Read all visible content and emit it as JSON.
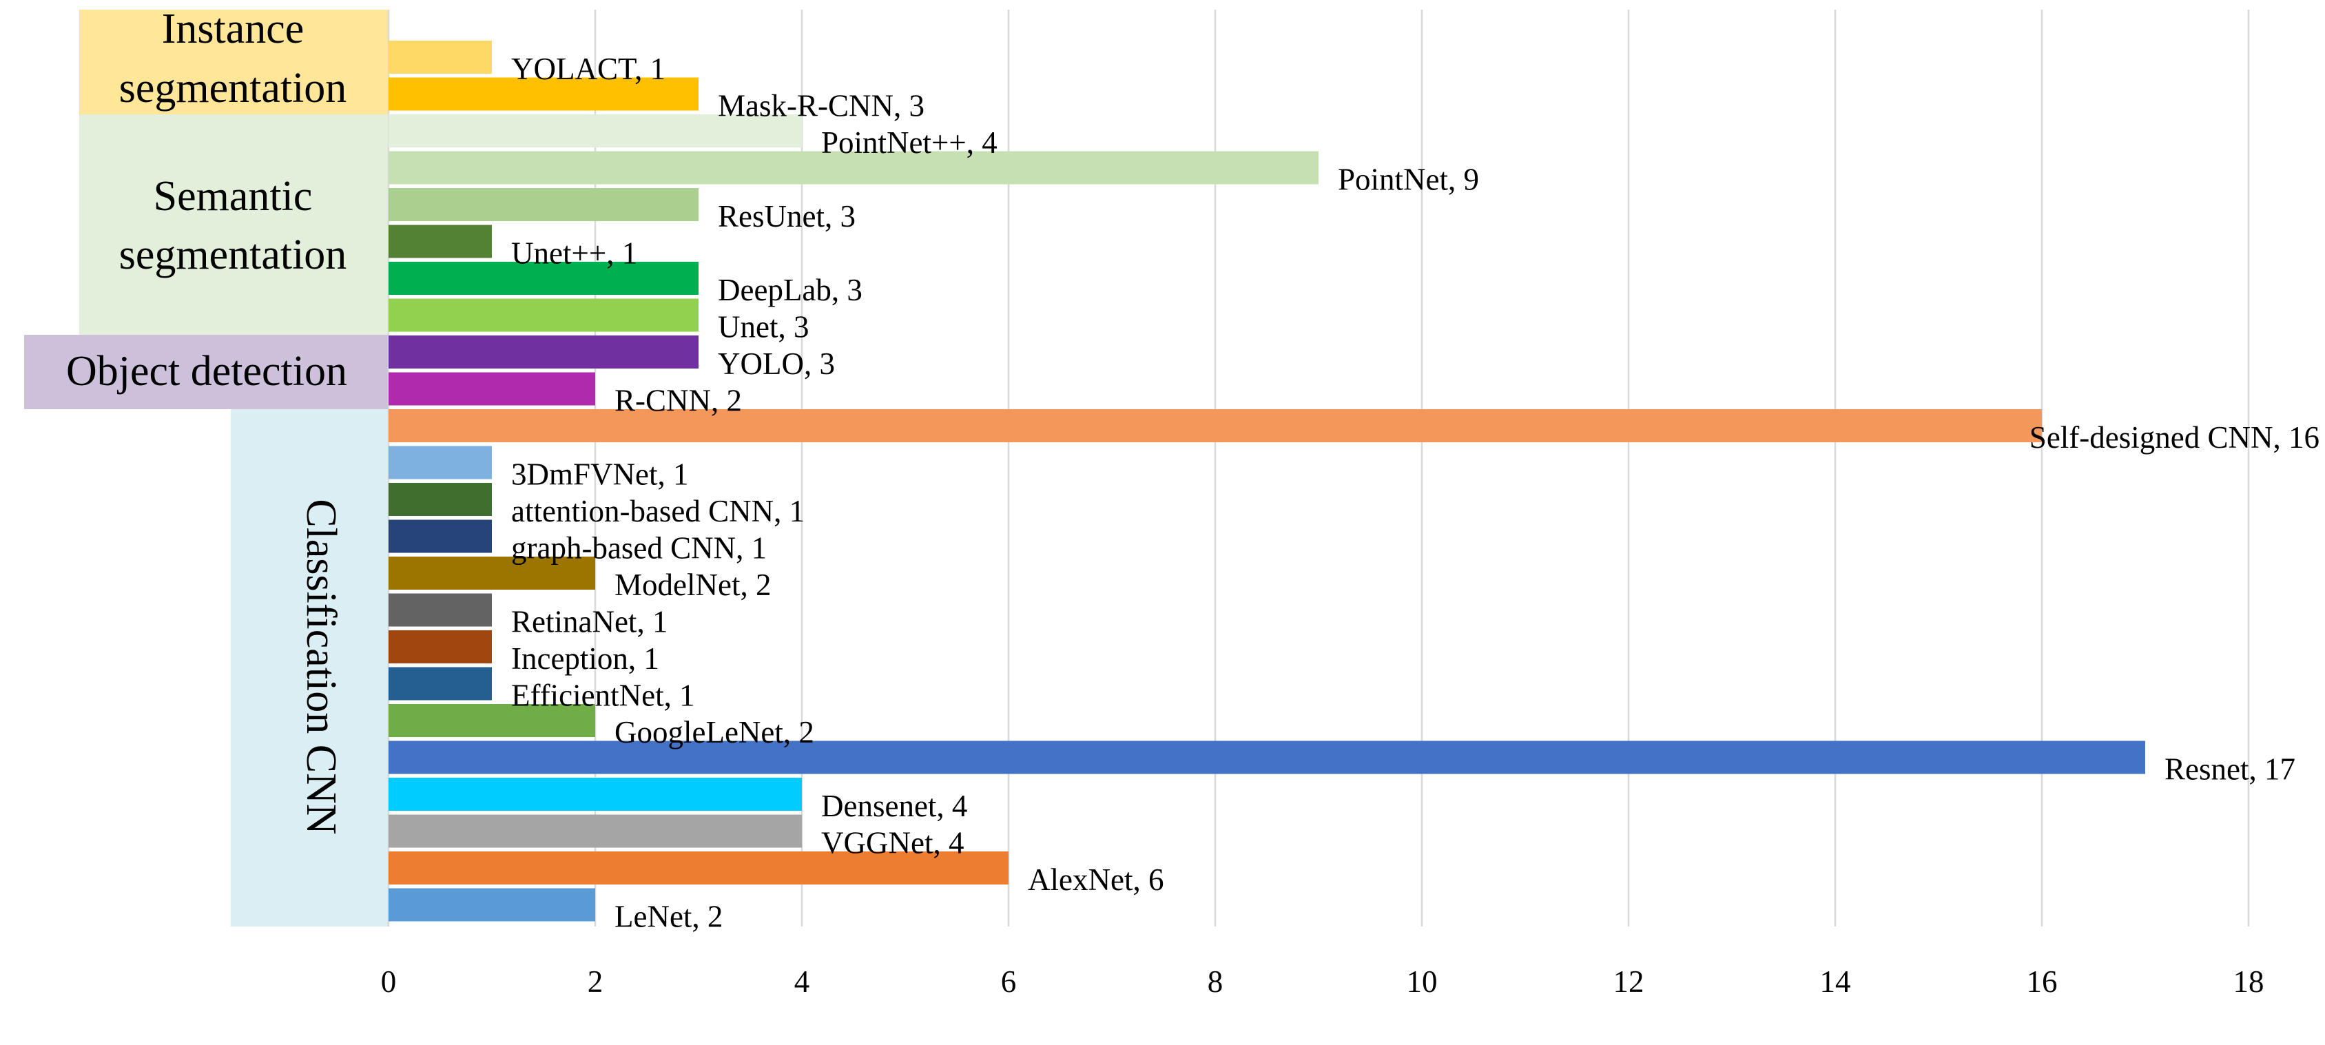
{
  "chart_data": {
    "type": "bar",
    "orientation": "horizontal",
    "title": "",
    "xlabel": "",
    "ylabel": "",
    "xlim": [
      0,
      18
    ],
    "x_ticks": [
      "0",
      "2",
      "4",
      "6",
      "8",
      "10",
      "12",
      "14",
      "16",
      "18"
    ],
    "grid": true,
    "groups": [
      {
        "name": "Instance segmentation",
        "lines": [
          "Instance",
          "segmentation"
        ],
        "color": "#FFE699",
        "text_orientation": "horizontal",
        "bars": [
          {
            "name": "YOLACT",
            "value": 1,
            "label": "YOLACT, 1",
            "color": "#FFD966"
          },
          {
            "name": "Mask-R-CNN",
            "value": 3,
            "label": "Mask-R-CNN, 3",
            "color": "#FFC000"
          }
        ]
      },
      {
        "name": "Semantic segmentation",
        "lines": [
          "Semantic",
          "segmentation"
        ],
        "color": "#E2EFDA",
        "text_orientation": "horizontal",
        "bars": [
          {
            "name": "PointNet++",
            "value": 4,
            "label": "PointNet++, 4",
            "color": "#E2EFDA"
          },
          {
            "name": "PointNet",
            "value": 9,
            "label": "PointNet, 9",
            "color": "#C6E0B4"
          },
          {
            "name": "ResUnet",
            "value": 3,
            "label": "ResUnet, 3",
            "color": "#A9D08E"
          },
          {
            "name": "Unet++",
            "value": 1,
            "label": "Unet++, 1",
            "color": "#548235"
          },
          {
            "name": "DeepLab",
            "value": 3,
            "label": "DeepLab, 3",
            "color": "#00B050"
          },
          {
            "name": "Unet",
            "value": 3,
            "label": "Unet, 3",
            "color": "#92D050"
          }
        ]
      },
      {
        "name": "Object detection",
        "lines": [
          "Object detection"
        ],
        "color": "#CDC0DA",
        "text_orientation": "horizontal",
        "bars": [
          {
            "name": "YOLO",
            "value": 3,
            "label": "YOLO, 3",
            "color": "#7030A0"
          },
          {
            "name": "R-CNN",
            "value": 2,
            "label": "R-CNN, 2",
            "color": "#B02AAE"
          }
        ]
      },
      {
        "name": "Classification CNN",
        "lines": [
          "Classification CNN"
        ],
        "color": "#DAEEF3",
        "text_orientation": "vertical",
        "bars": [
          {
            "name": "Self-designed CNN",
            "value": 16,
            "label": "Self-designed CNN, 16",
            "color": "#F4975B"
          },
          {
            "name": "3DmFVNet",
            "value": 1,
            "label": "3DmFVNet, 1",
            "color": "#7FB1E0"
          },
          {
            "name": "attention-based CNN",
            "value": 1,
            "label": "attention-based CNN, 1",
            "color": "#3F6E2F"
          },
          {
            "name": "graph-based CNN",
            "value": 1,
            "label": "graph-based CNN, 1",
            "color": "#264478"
          },
          {
            "name": "ModelNet",
            "value": 2,
            "label": "ModelNet, 2",
            "color": "#9C7500"
          },
          {
            "name": "RetinaNet",
            "value": 1,
            "label": "RetinaNet, 1",
            "color": "#636363"
          },
          {
            "name": "Inception",
            "value": 1,
            "label": "Inception, 1",
            "color": "#A1460E"
          },
          {
            "name": "EfficientNet",
            "value": 1,
            "label": "EfficientNet, 1",
            "color": "#255E91"
          },
          {
            "name": "GoogleLeNet",
            "value": 2,
            "label": "GoogleLeNet, 2",
            "color": "#70AD47"
          },
          {
            "name": "Resnet",
            "value": 17,
            "label": "Resnet, 17",
            "color": "#4472C4"
          },
          {
            "name": "Densenet",
            "value": 4,
            "label": "Densenet, 4",
            "color": "#00CCFF"
          },
          {
            "name": "VGGNet",
            "value": 4,
            "label": "VGGNet, 4",
            "color": "#A5A5A5"
          },
          {
            "name": "AlexNet",
            "value": 6,
            "label": "AlexNet, 6",
            "color": "#ED7D31"
          },
          {
            "name": "LeNet",
            "value": 2,
            "label": "LeNet, 2",
            "color": "#5B9BD5"
          }
        ]
      }
    ]
  }
}
